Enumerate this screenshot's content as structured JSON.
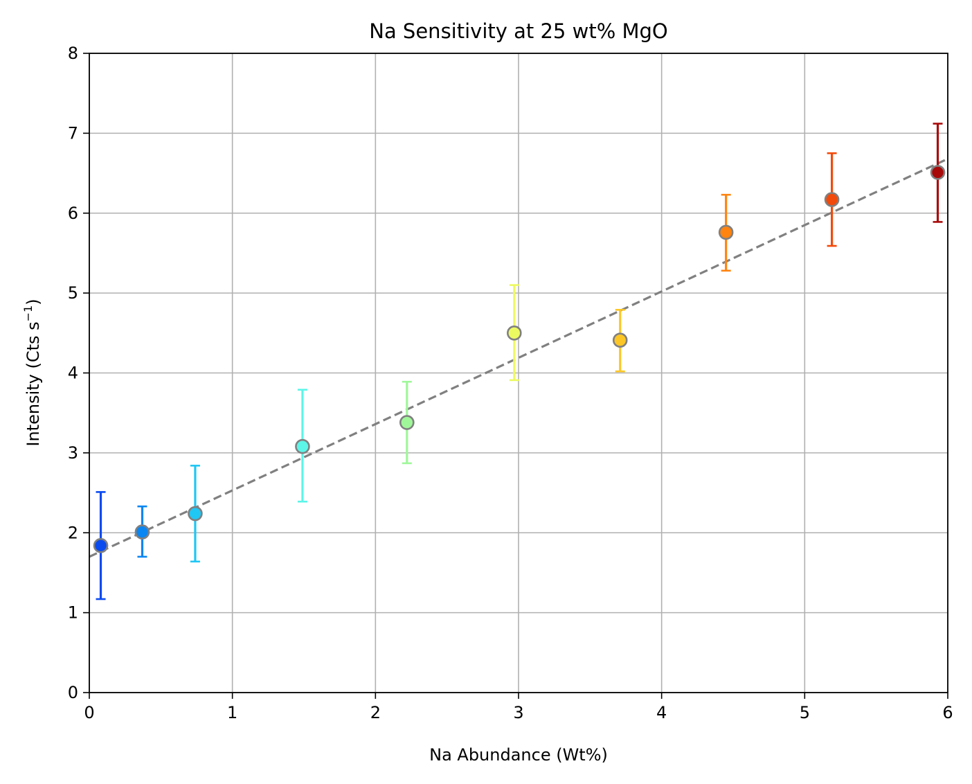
{
  "chart_data": {
    "type": "scatter",
    "title": "Na Sensitivity at 25 wt% MgO",
    "xlabel": "Na Abundance (Wt%)",
    "ylabel": {
      "prefix": "Intensity (Cts s",
      "superscript": "−1",
      "suffix": ")"
    },
    "xlim": [
      0,
      6
    ],
    "ylim": [
      0,
      8
    ],
    "xticks": [
      0,
      1,
      2,
      3,
      4,
      5,
      6
    ],
    "yticks": [
      0,
      1,
      2,
      3,
      4,
      5,
      6,
      7,
      8
    ],
    "grid": true,
    "points": [
      {
        "x": 0.08,
        "y": 1.84,
        "lower": 1.17,
        "upper": 2.51,
        "color": "#0a4bf0"
      },
      {
        "x": 0.37,
        "y": 2.01,
        "lower": 1.7,
        "upper": 2.33,
        "color": "#0a86f2"
      },
      {
        "x": 0.74,
        "y": 2.24,
        "lower": 1.64,
        "upper": 2.84,
        "color": "#1fc7f5"
      },
      {
        "x": 1.49,
        "y": 3.08,
        "lower": 2.39,
        "upper": 3.79,
        "color": "#5cf5e8"
      },
      {
        "x": 2.22,
        "y": 3.38,
        "lower": 2.87,
        "upper": 3.89,
        "color": "#a0f79a"
      },
      {
        "x": 2.97,
        "y": 4.5,
        "lower": 3.91,
        "upper": 5.1,
        "color": "#ecfa62"
      },
      {
        "x": 3.71,
        "y": 4.41,
        "lower": 4.02,
        "upper": 4.79,
        "color": "#fbc626"
      },
      {
        "x": 4.45,
        "y": 5.76,
        "lower": 5.28,
        "upper": 6.23,
        "color": "#ff8410"
      },
      {
        "x": 5.19,
        "y": 6.17,
        "lower": 5.59,
        "upper": 6.75,
        "color": "#f24a0a"
      },
      {
        "x": 5.93,
        "y": 6.51,
        "lower": 5.89,
        "upper": 7.12,
        "color": "#a80a0a"
      }
    ],
    "fit_line": {
      "style": "dashed",
      "color": "#808080",
      "x": [
        0,
        6
      ],
      "y": [
        1.7,
        6.68
      ]
    },
    "marker_edge_color": "#808080"
  }
}
